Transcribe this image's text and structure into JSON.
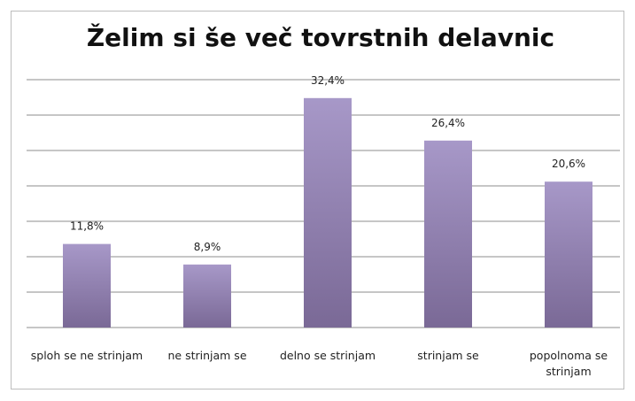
{
  "chart_data": {
    "type": "bar",
    "title": "Želim si še več tovrstnih delavnic",
    "categories": [
      "sploh se ne strinjam",
      "ne strinjam se",
      "delno se strinjam",
      "strinjam se",
      "popolnoma se strinjam"
    ],
    "values": [
      11.8,
      8.9,
      32.4,
      26.4,
      20.6
    ],
    "value_labels": [
      "11,8%",
      "8,9%",
      "32,4%",
      "26,4%",
      "20,6%"
    ],
    "color": "#9a8aba",
    "ylim": [
      0,
      35
    ],
    "yticks": [
      0,
      5,
      10,
      15,
      20,
      25,
      30,
      35
    ],
    "grid": true
  }
}
